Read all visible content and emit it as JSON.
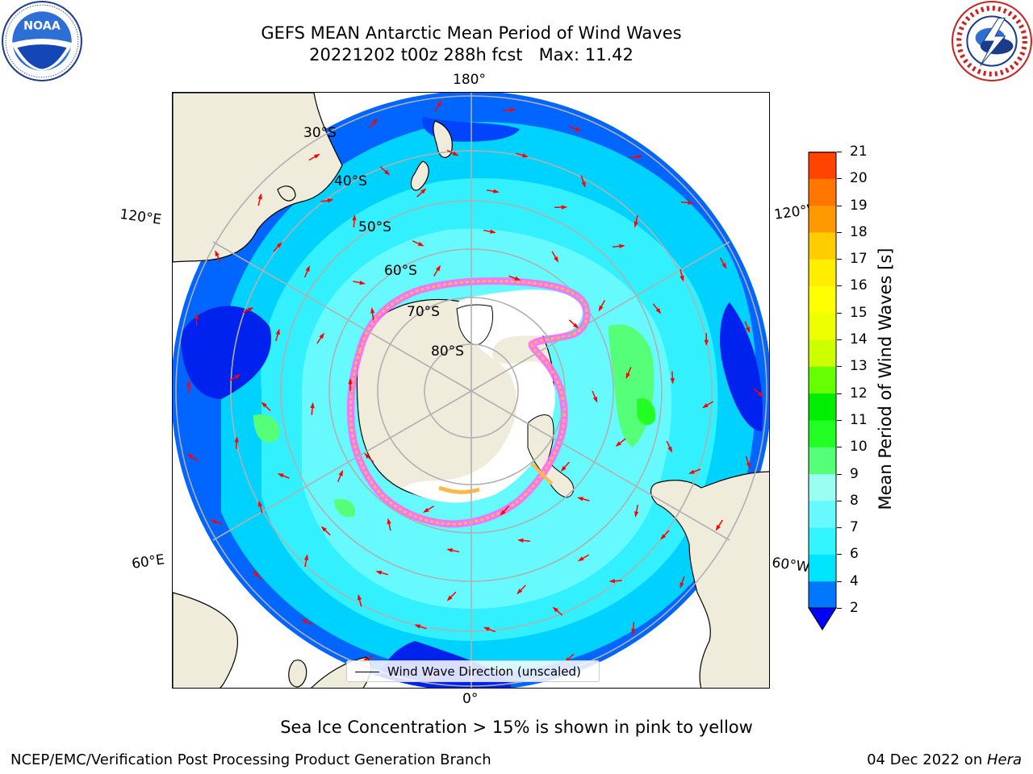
{
  "title": {
    "line1": "GEFS MEAN Antarctic Mean Period of Wind Waves",
    "line2": "20221202 t00z 288h fcst   Max: 11.42"
  },
  "logos": {
    "left": {
      "name": "noaa-logo",
      "text": "NOAA",
      "ring_text": "NATIONAL OCEANIC AND ATMOSPHERIC ADMINISTRATION · U.S. DEPARTMENT OF COMMERCE"
    },
    "right": {
      "name": "nws-logo",
      "ring_text": "NATIONAL WEATHER SERVICE"
    }
  },
  "map": {
    "projection": "south-polar-stereographic",
    "longitude_labels": {
      "top": "180°",
      "bottom": "0°",
      "upper_left": "120°E",
      "lower_left": "60°E",
      "upper_right": "120°W",
      "lower_right": "60°W"
    },
    "latitude_labels": [
      "30°S",
      "40°S",
      "50°S",
      "60°S",
      "70°S",
      "80°S"
    ],
    "legend": "Wind Wave Direction (unscaled)",
    "colors": {
      "land": "#efecdc",
      "sea_ice": "#ffffff",
      "ice_edge_pink": "#ff66ff",
      "ice_edge_orange": "#ffb84d",
      "arrows": "#ff0000",
      "graticule": "#b0b0b0"
    }
  },
  "colorbar": {
    "label": "Mean Period of Wind Waves [s]",
    "ticks": [
      "2",
      "4",
      "6",
      "7",
      "8",
      "9",
      "10",
      "11",
      "12",
      "13",
      "14",
      "15",
      "16",
      "17",
      "18",
      "19",
      "20",
      "21"
    ],
    "colors": [
      "#0000ff",
      "#0077ff",
      "#00e5ff",
      "#33f5ff",
      "#66faff",
      "#99fff0",
      "#55ff77",
      "#22ff22",
      "#00ee00",
      "#66ff00",
      "#ccff00",
      "#eeff00",
      "#ffff00",
      "#ffee00",
      "#ffcc00",
      "#ff9900",
      "#ff7700",
      "#ff4400",
      "#ff0000"
    ]
  },
  "caption": "Sea Ice Concentration > 15% is shown in pink to yellow",
  "credits": {
    "left": "NCEP/EMC/Verification Post Processing Product Generation Branch",
    "date": "04 Dec 2022 on ",
    "machine": "Hera"
  }
}
